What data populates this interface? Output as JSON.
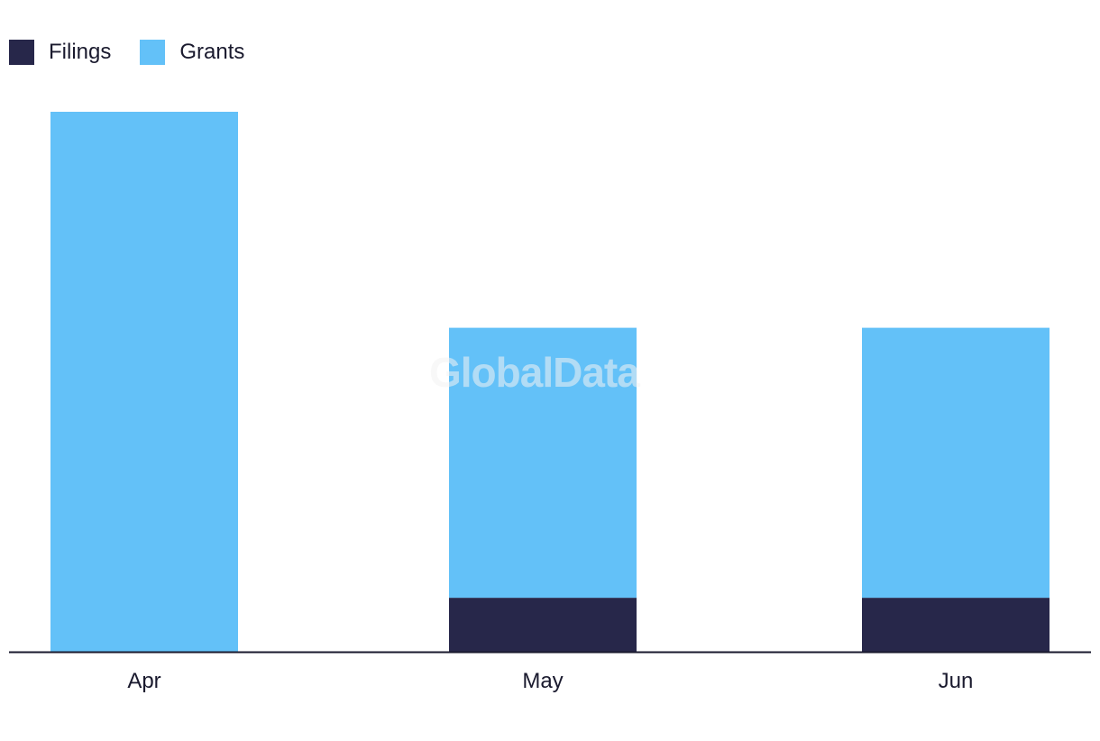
{
  "legend": {
    "items": [
      {
        "label": "Filings",
        "color": "#27274a"
      },
      {
        "label": "Grants",
        "color": "#63c1f8"
      }
    ]
  },
  "watermark": "GlobalData",
  "chart_data": {
    "type": "bar",
    "stacked": true,
    "categories": [
      "Apr",
      "May",
      "Jun"
    ],
    "series": [
      {
        "name": "Filings",
        "values": [
          0,
          1,
          1
        ],
        "color": "#27274a"
      },
      {
        "name": "Grants",
        "values": [
          10,
          5,
          5
        ],
        "color": "#63c1f8"
      }
    ],
    "title": "",
    "xlabel": "",
    "ylabel": "",
    "ylim": [
      0,
      10
    ],
    "grid": false,
    "legend_position": "top-left"
  }
}
